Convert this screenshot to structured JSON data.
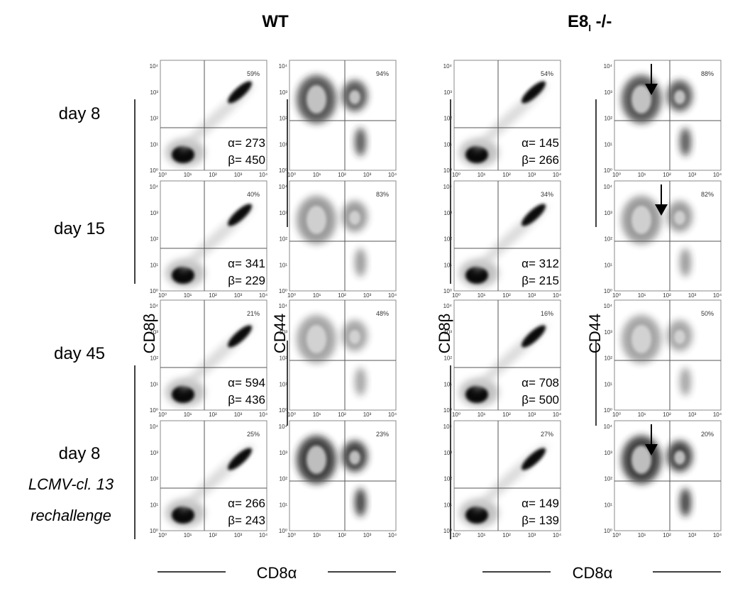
{
  "columns": [
    {
      "title": "WT"
    },
    {
      "title": "E8",
      "title_sub": "I",
      "title_suffix": " -/-"
    }
  ],
  "rows": [
    {
      "label": "day 8"
    },
    {
      "label": "day 15"
    },
    {
      "label": "day 45"
    },
    {
      "label": "day 8",
      "sublabel": [
        "LCMV-cl. 13",
        "rechallenge"
      ]
    }
  ],
  "axis_labels": {
    "cd8b": "CD8β",
    "cd44": "CD44",
    "cd8a": "CD8α"
  },
  "ticks": [
    "10⁰",
    "10¹",
    "10²",
    "10³",
    "10⁴"
  ],
  "panels": {
    "wt": [
      {
        "cd8b_pct": "59%",
        "alpha": "α= 273",
        "beta": "β= 450",
        "cd44_pct": "94%"
      },
      {
        "cd8b_pct": "40%",
        "alpha": "α= 341",
        "beta": "β= 229",
        "cd44_pct": "83%"
      },
      {
        "cd8b_pct": "21%",
        "alpha": "α= 594",
        "beta": "β= 436",
        "cd44_pct": "48%"
      },
      {
        "cd8b_pct": "25%",
        "alpha": "α= 266",
        "beta": "β= 243",
        "cd44_pct": "23%"
      }
    ],
    "e8": [
      {
        "cd8b_pct": "54%",
        "alpha": "α= 145",
        "beta": "β= 266",
        "cd44_pct": "88%"
      },
      {
        "cd8b_pct": "34%",
        "alpha": "α= 312",
        "beta": "β= 215",
        "cd44_pct": "82%"
      },
      {
        "cd8b_pct": "16%",
        "alpha": "α= 708",
        "beta": "β= 500",
        "cd44_pct": "50%"
      },
      {
        "cd8b_pct": "27%",
        "alpha": "α= 149",
        "beta": "β= 139",
        "cd44_pct": "20%"
      }
    ]
  }
}
